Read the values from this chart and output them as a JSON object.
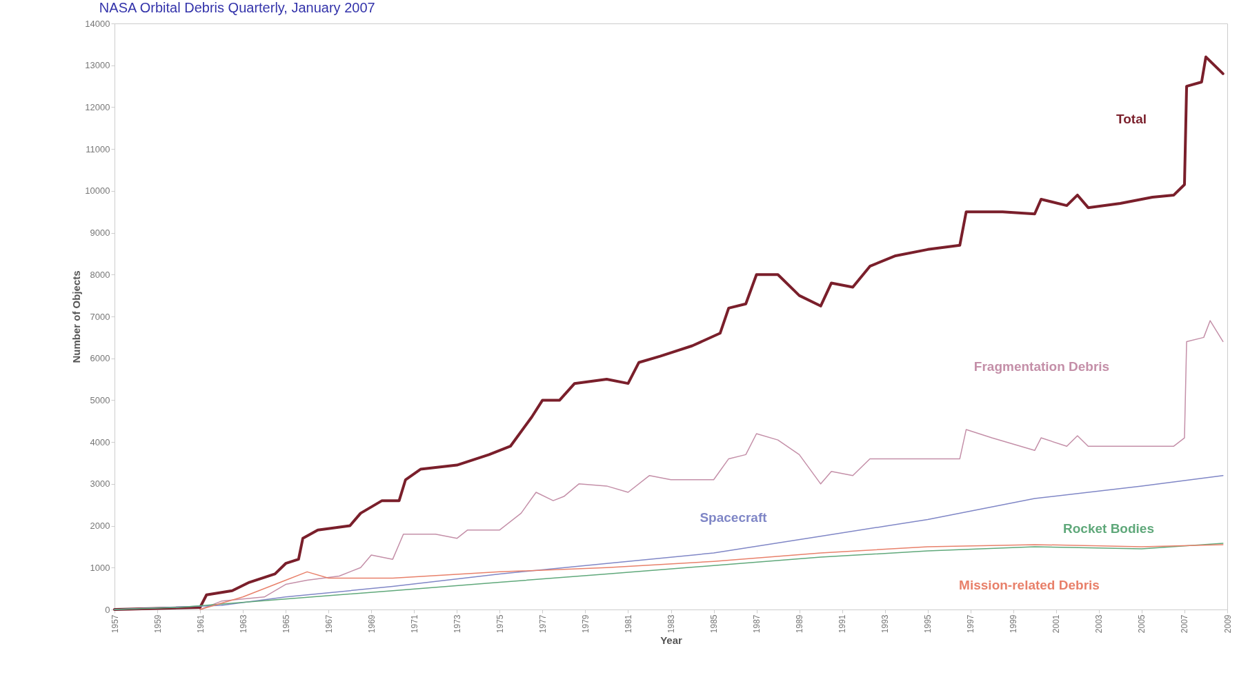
{
  "chart_data": {
    "type": "line",
    "title": "NASA Orbital Debris Quarterly, January 2007",
    "xlabel": "Year",
    "ylabel": "Number of Objects",
    "xlim": [
      1957,
      2009
    ],
    "xticks": [
      1957,
      1959,
      1961,
      1963,
      1965,
      1967,
      1969,
      1971,
      1973,
      1975,
      1977,
      1979,
      1981,
      1983,
      1985,
      1987,
      1989,
      1991,
      1993,
      1995,
      1997,
      1999,
      2001,
      2003,
      2005,
      2007,
      2009
    ],
    "ylim": [
      0,
      14000
    ],
    "yticks": [
      0,
      1000,
      2000,
      3000,
      4000,
      5000,
      6000,
      7000,
      8000,
      9000,
      10000,
      11000,
      12000,
      13000,
      14000
    ],
    "grid": false,
    "marker": "none",
    "line_style": "solid",
    "series": [
      {
        "name": "Total",
        "color": "#7a1f2b",
        "x": [
          1957,
          1961,
          1961.3,
          1962.5,
          1963.3,
          1964.5,
          1965,
          1965.6,
          1965.8,
          1966.5,
          1968,
          1968.5,
          1969.5,
          1970.3,
          1970.6,
          1971.3,
          1973,
          1974.5,
          1975.5,
          1976.5,
          1977,
          1977.8,
          1978.5,
          1980,
          1981,
          1981.5,
          1982.5,
          1984,
          1985.3,
          1985.7,
          1986.5,
          1987,
          1988,
          1989,
          1990,
          1990.5,
          1991.5,
          1992.3,
          1993.5,
          1995,
          1996.5,
          1996.8,
          1998.5,
          2000,
          2000.3,
          2001.5,
          2002,
          2002.5,
          2004,
          2005.5,
          2006.5,
          2007,
          2007.1,
          2007.8,
          2008,
          2008.8
        ],
        "values": [
          0,
          50,
          350,
          450,
          650,
          850,
          1100,
          1200,
          1700,
          1900,
          2000,
          2300,
          2600,
          2600,
          3100,
          3350,
          3450,
          3700,
          3900,
          4600,
          5000,
          5000,
          5400,
          5500,
          5400,
          5900,
          6050,
          6300,
          6600,
          7200,
          7300,
          8000,
          8000,
          7500,
          7250,
          7800,
          7700,
          8200,
          8450,
          8600,
          8700,
          9500,
          9500,
          9450,
          9800,
          9650,
          9900,
          9600,
          9700,
          9850,
          9900,
          10150,
          12500,
          12600,
          13200,
          12800
        ]
      },
      {
        "name": "Fragmentation Debris",
        "color": "#c48fa8",
        "x": [
          1961,
          1962,
          1964,
          1965,
          1966,
          1967.5,
          1968.5,
          1969,
          1970,
          1970.5,
          1972,
          1973,
          1973.5,
          1975,
          1976,
          1976.7,
          1977.5,
          1978,
          1978.7,
          1980,
          1981,
          1982,
          1983,
          1985,
          1985.7,
          1986.5,
          1987,
          1988,
          1989,
          1990,
          1990.5,
          1991.5,
          1992.3,
          1995,
          1996.5,
          1996.8,
          1998,
          2000,
          2000.3,
          2001.5,
          2002,
          2002.5,
          2006.5,
          2007,
          2007.1,
          2007.9,
          2008.2,
          2008.8
        ],
        "values": [
          0,
          200,
          300,
          600,
          700,
          800,
          1000,
          1300,
          1200,
          1800,
          1800,
          1700,
          1900,
          1900,
          2300,
          2800,
          2600,
          2700,
          3000,
          2950,
          2800,
          3200,
          3100,
          3100,
          3600,
          3700,
          4200,
          4050,
          3700,
          3000,
          3300,
          3200,
          3600,
          3600,
          3600,
          4300,
          4100,
          3800,
          4100,
          3900,
          4150,
          3900,
          3900,
          4100,
          6400,
          6500,
          6900,
          6400
        ]
      },
      {
        "name": "Spacecraft",
        "color": "#7f86c6",
        "x": [
          1957,
          1962,
          1965,
          1970,
          1975,
          1980,
          1985,
          1990,
          1995,
          2000,
          2005,
          2008.8
        ],
        "values": [
          0,
          100,
          300,
          550,
          850,
          1100,
          1350,
          1750,
          2150,
          2650,
          2950,
          3200
        ]
      },
      {
        "name": "Rocket Bodies",
        "color": "#5fa87a",
        "x": [
          1957,
          1960,
          1965,
          1970,
          1975,
          1980,
          1985,
          1990,
          1995,
          2000,
          2005,
          2008.8
        ],
        "values": [
          0,
          50,
          250,
          450,
          650,
          850,
          1050,
          1250,
          1400,
          1500,
          1450,
          1580
        ]
      },
      {
        "name": "Mission-related Debris",
        "color": "#e8806a",
        "x": [
          1961,
          1963,
          1965,
          1966,
          1967,
          1970,
          1975,
          1980,
          1985,
          1990,
          1995,
          2000,
          2005,
          2008.8
        ],
        "values": [
          0,
          300,
          700,
          900,
          750,
          750,
          900,
          1000,
          1150,
          1350,
          1500,
          1550,
          1500,
          1550
        ]
      }
    ]
  }
}
